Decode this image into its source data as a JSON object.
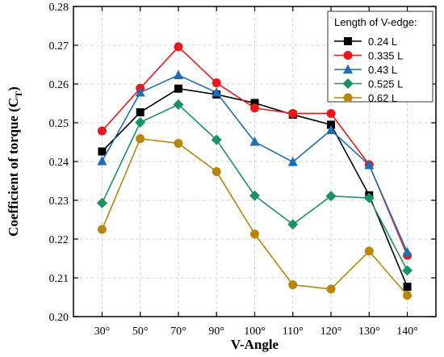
{
  "chart_data": {
    "type": "line",
    "xlabel": "V-Angle",
    "ylabel": "Coefficient of torque (C",
    "ylabel_subscript": "T",
    "ylabel_close": ")",
    "categories": [
      "30°",
      "50°",
      "70°",
      "90°",
      "100°",
      "110°",
      "120°",
      "130°",
      "140°"
    ],
    "ylim": [
      0.2,
      0.28
    ],
    "yticks": [
      "0.20",
      "0.21",
      "0.22",
      "0.23",
      "0.24",
      "0.25",
      "0.26",
      "0.27",
      "0.28"
    ],
    "grid": true,
    "legend_title": "Length of V-edge:",
    "legend_position": "top-right",
    "series": [
      {
        "name": "0.24 L",
        "color": "#000000",
        "marker": "square",
        "values": [
          0.2426,
          0.2527,
          0.2588,
          0.2573,
          0.2551,
          0.2521,
          0.2495,
          0.2313,
          0.2077
        ]
      },
      {
        "name": "0.335 L",
        "color": "#e8191a",
        "marker": "circle",
        "values": [
          0.2479,
          0.2589,
          0.2696,
          0.2603,
          0.2538,
          0.2524,
          0.2524,
          0.2392,
          0.2158
        ]
      },
      {
        "name": "0.43 L",
        "color": "#1f6eb4",
        "marker": "triangle",
        "values": [
          0.2401,
          0.2578,
          0.2623,
          0.2578,
          0.2451,
          0.2399,
          0.2481,
          0.2391,
          0.2166
        ]
      },
      {
        "name": "0.525 L",
        "color": "#1a9266",
        "marker": "diamond",
        "values": [
          0.2293,
          0.2501,
          0.2547,
          0.2456,
          0.2312,
          0.2238,
          0.2311,
          0.2306,
          0.2119
        ]
      },
      {
        "name": "0.62 L",
        "color": "#b8860b",
        "marker": "circle",
        "values": [
          0.2225,
          0.2459,
          0.2447,
          0.2374,
          0.2213,
          0.2082,
          0.2071,
          0.2169,
          0.2055
        ]
      }
    ]
  }
}
